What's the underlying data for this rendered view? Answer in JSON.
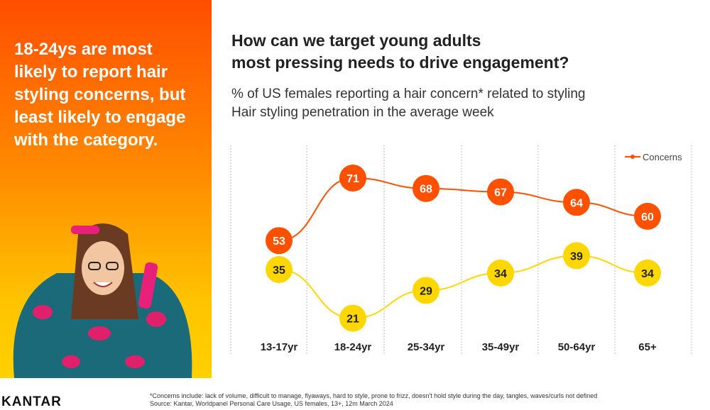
{
  "left_panel": {
    "headline": "18-24ys are most likely to report hair styling concerns, but least likely to engage with the category."
  },
  "header": {
    "title_line1": "How can we target young adults",
    "title_line2": "most pressing needs to drive engagement?",
    "subtitle_line1": "% of US females reporting a hair concern* related to styling",
    "subtitle_line2": "Hair styling penetration in the average week"
  },
  "footer": {
    "note": "*Concerns include: lack of volume, difficult to manage,  flyaways, hard to style, prone to  frizz, doesn't hold style during the day, tangles,  waves/curls not defined",
    "source": "Source: Kantar, Worldpanel Personal Care Usage, US  females, 13+, 12m March 2024",
    "logo": "KANTAR"
  },
  "chart_data": {
    "type": "line",
    "categories": [
      "13-17yr",
      "18-24yr",
      "25-34yr",
      "35-49yr",
      "50-64yr",
      "65+"
    ],
    "series": [
      {
        "name": "Concerns",
        "values": [
          53,
          71,
          68,
          67,
          64,
          60
        ],
        "color": "#ff5000"
      },
      {
        "values": [
          35,
          21,
          29,
          34,
          39,
          34
        ],
        "color": "#ffd700"
      }
    ],
    "legend": "top-right",
    "grid": "vertical dotted separators",
    "data_labels": true
  }
}
